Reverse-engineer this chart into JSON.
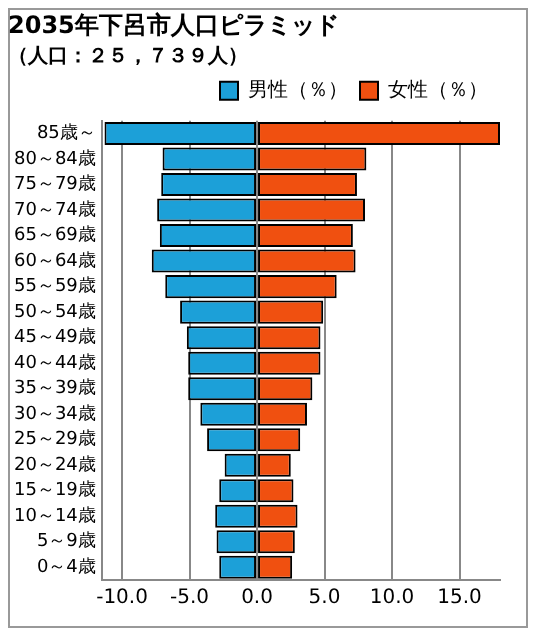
{
  "chart_data": {
    "type": "bar",
    "orientation": "horizontal",
    "title": "2035年下呂市人口ピラミッド",
    "subtitle": "（人口：２５，７３９人）",
    "categories": [
      "85歳～",
      "80～84歳",
      "75～79歳",
      "70～74歳",
      "65～69歳",
      "60～64歳",
      "55～59歳",
      "50～54歳",
      "45～49歳",
      "40～44歳",
      "35～39歳",
      "30～34歳",
      "25～29歳",
      "20～24歳",
      "15～19歳",
      "10～14歳",
      "5～9歳",
      "0～4歳"
    ],
    "series": [
      {
        "name": "男性（％）",
        "color": "#1ca0d8",
        "values": [
          -11.3,
          -7.0,
          -7.1,
          -7.4,
          -7.2,
          -7.8,
          -6.8,
          -5.7,
          -5.2,
          -5.1,
          -5.1,
          -4.2,
          -3.7,
          -2.4,
          -2.8,
          -3.1,
          -3.0,
          -2.8
        ]
      },
      {
        "name": "女性（％）",
        "color": "#f05010",
        "values": [
          18,
          8.1,
          7.4,
          8.0,
          7.1,
          7.3,
          5.9,
          4.9,
          4.7,
          4.7,
          4.1,
          3.7,
          3.2,
          2.5,
          2.7,
          3.0,
          2.8,
          2.6
        ]
      }
    ],
    "xlim": [
      -11.5,
      18
    ],
    "stacked": true,
    "xticks": [
      {
        "value": -10,
        "label": "-10.0"
      },
      {
        "value": -5,
        "label": "-5.0"
      },
      {
        "value": 0,
        "label": "0.0"
      },
      {
        "value": 5,
        "label": "5.0"
      },
      {
        "value": 10,
        "label": "10.0"
      },
      {
        "value": 15,
        "label": "15.0"
      }
    ],
    "grid": "x",
    "legend": "top right"
  }
}
